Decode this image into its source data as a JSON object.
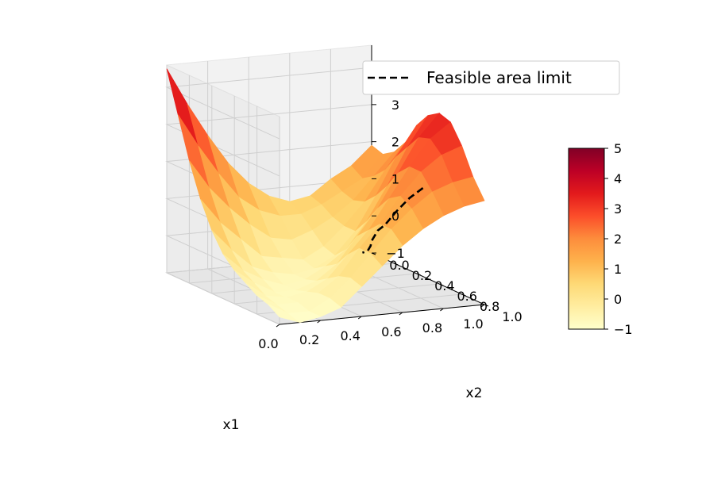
{
  "chart_data": {
    "type": "surface3d",
    "title": "",
    "xlabel": "x1",
    "ylabel": "x2",
    "zlabel": "",
    "xlim": [
      0,
      1
    ],
    "ylim": [
      0,
      1
    ],
    "zlim": [
      -1,
      4.6
    ],
    "x_ticks": [
      "0.0",
      "0.2",
      "0.4",
      "0.6",
      "0.8",
      "1.0"
    ],
    "y_ticks": [
      "0.0",
      "0.2",
      "0.4",
      "0.6",
      "0.8",
      "1.0"
    ],
    "z_ticks": [
      "−1",
      "0",
      "1",
      "2",
      "3",
      "4"
    ],
    "z_tick_values": [
      -1,
      0,
      1,
      2,
      3,
      4
    ],
    "colormap": "YlOrRd",
    "colorbar": {
      "range": [
        -1,
        5
      ],
      "ticks": [
        "−1",
        "0",
        "1",
        "2",
        "3",
        "4",
        "5"
      ],
      "tick_values": [
        -1,
        0,
        1,
        2,
        3,
        4,
        5
      ],
      "colors": [
        "#ffffcc",
        "#ffeda0",
        "#fed976",
        "#feb24c",
        "#fd8d3c",
        "#fc4e2a",
        "#e31a1c",
        "#bd0026",
        "#800026"
      ]
    },
    "legend": {
      "placement": "top-right",
      "entries": [
        {
          "label": "Feasible area limit",
          "style": "dashed",
          "color": "#000000"
        }
      ]
    },
    "grid": true,
    "feasible_limit": {
      "x1": [
        0.7,
        0.69,
        0.68,
        0.68,
        0.7,
        0.74,
        0.78,
        0.83,
        0.87,
        0.9
      ],
      "x2": [
        1.0,
        0.9,
        0.8,
        0.7,
        0.6,
        0.5,
        0.4,
        0.3,
        0.2,
        0.1
      ],
      "z": [
        2.3,
        1.9,
        1.4,
        0.9,
        0.6,
        0.3,
        0.0,
        -0.3,
        -0.6,
        -0.8
      ]
    },
    "surface_grid": {
      "x1": [
        0.0,
        0.1,
        0.2,
        0.3,
        0.4,
        0.5,
        0.6,
        0.7,
        0.8,
        0.9,
        1.0
      ],
      "x2": [
        0.0,
        0.1,
        0.2,
        0.3,
        0.4,
        0.5,
        0.6,
        0.7,
        0.8,
        0.9,
        1.0
      ],
      "z": [
        [
          4.5,
          3.5,
          2.6,
          1.8,
          1.2,
          0.8,
          0.6,
          0.7,
          1.1,
          1.4,
          1.9
        ],
        [
          3.4,
          2.5,
          1.7,
          1.0,
          0.6,
          0.4,
          0.4,
          0.6,
          0.9,
          1.2,
          1.8
        ],
        [
          2.3,
          1.5,
          0.9,
          0.4,
          0.0,
          -0.1,
          0.1,
          0.4,
          0.8,
          1.4,
          2.0
        ],
        [
          1.4,
          0.7,
          0.2,
          -0.3,
          -0.4,
          -0.5,
          -0.2,
          0.3,
          0.9,
          1.7,
          2.4
        ],
        [
          0.7,
          0.1,
          -0.4,
          -0.6,
          -0.7,
          -0.6,
          -0.3,
          0.3,
          1.2,
          2.2,
          3.0
        ],
        [
          0.2,
          -0.3,
          -0.6,
          -0.8,
          -0.7,
          -0.4,
          0.0,
          0.7,
          1.6,
          2.6,
          3.4
        ],
        [
          -0.1,
          -0.5,
          -0.8,
          -0.8,
          -0.6,
          -0.2,
          0.5,
          1.2,
          2.1,
          3.0,
          3.6
        ],
        [
          -0.3,
          -0.7,
          -0.8,
          -0.7,
          -0.4,
          0.2,
          0.8,
          1.6,
          2.4,
          3.1,
          3.5
        ],
        [
          -0.5,
          -0.8,
          -0.8,
          -0.6,
          -0.2,
          0.5,
          1.1,
          1.8,
          2.4,
          2.8,
          3.0
        ],
        [
          -0.6,
          -0.9,
          -0.9,
          -0.6,
          -0.1,
          0.5,
          1.1,
          1.6,
          2.0,
          2.2,
          2.3
        ],
        [
          -0.8,
          -1.0,
          -0.9,
          -0.7,
          -0.2,
          0.3,
          0.8,
          1.2,
          1.5,
          1.7,
          1.8
        ]
      ]
    }
  }
}
